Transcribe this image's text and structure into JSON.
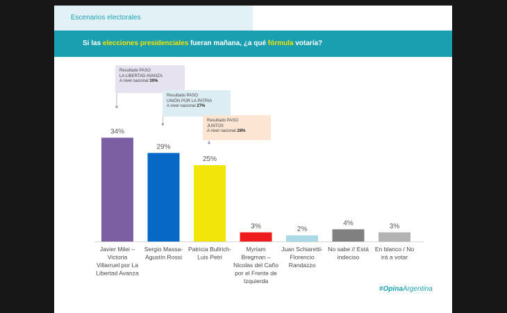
{
  "header": {
    "section": "Escenarios electorales",
    "question_parts": [
      {
        "t": "Si las ",
        "hl": false
      },
      {
        "t": "elecciones presidenciales",
        "hl": true
      },
      {
        "t": " fueran mañana, ¿a qué ",
        "hl": false
      },
      {
        "t": "fórmula",
        "hl": true
      },
      {
        "t": " votaría?",
        "hl": false
      }
    ]
  },
  "callouts": {
    "lla": {
      "line1": "Resultado PASO",
      "line2": "LA LIBERTAD AVANZA",
      "line3_prefix": "A nivel nacional ",
      "value": "30%"
    },
    "uxp": {
      "line1": "Resultado PASO",
      "line2": "UNIÓN POR LA PATRIA",
      "line3_prefix": "A nivel nacional ",
      "value": "27%"
    },
    "jxc": {
      "line1": "Resultado PASO",
      "line2": "JUNTOS",
      "line3_prefix": "A nivel nacional ",
      "value": "28%"
    }
  },
  "brand": {
    "icon": "#",
    "text_bold": "Opina",
    "text": "Argentina"
  },
  "colors": {
    "accent": "#1a9fb0",
    "highlight": "#f4e300"
  },
  "chart_data": {
    "type": "bar",
    "categories": [
      "Javier Milei – Victoria Villarruel por La Libertad Avanza",
      "Sergio Massa- Agustín Rossi",
      "Patricia Bullrich- Luis Petri",
      "Myriam Bregman – Nicolas del Caño por el Frente de Izquierda",
      "Juan Schiaretti- Florencio Randazzo",
      "No sabe // Está indeciso",
      "En blanco / No irá a votar"
    ],
    "category_lines": [
      [
        "Javier Milei –",
        "Victoria",
        "Villarruel por La",
        "Libertad Avanza"
      ],
      [
        "Sergio Massa-",
        "Agustín Rossi"
      ],
      [
        "Patricia Bullrich-",
        "Luis Petri"
      ],
      [
        "Myriam",
        "Bregman –",
        "Nicolas del Caño",
        "por el Frente de",
        "Izquierda"
      ],
      [
        "Juan Schiaretti-",
        "Florencio",
        "Randazzo"
      ],
      [
        "No sabe // Está",
        "indeciso"
      ],
      [
        "En blanco / No",
        "irá a votar"
      ]
    ],
    "values": [
      34,
      29,
      25,
      3,
      2,
      4,
      3
    ],
    "labels": [
      "34%",
      "29%",
      "25%",
      "3%",
      "2%",
      "4%",
      "3%"
    ],
    "colors": [
      "#7b5fa2",
      "#0868c6",
      "#f2e50a",
      "#ee1c1c",
      "#a8d9e4",
      "#808080",
      "#b3b3b3"
    ],
    "unit": "%",
    "grid": false,
    "legend": "none"
  }
}
